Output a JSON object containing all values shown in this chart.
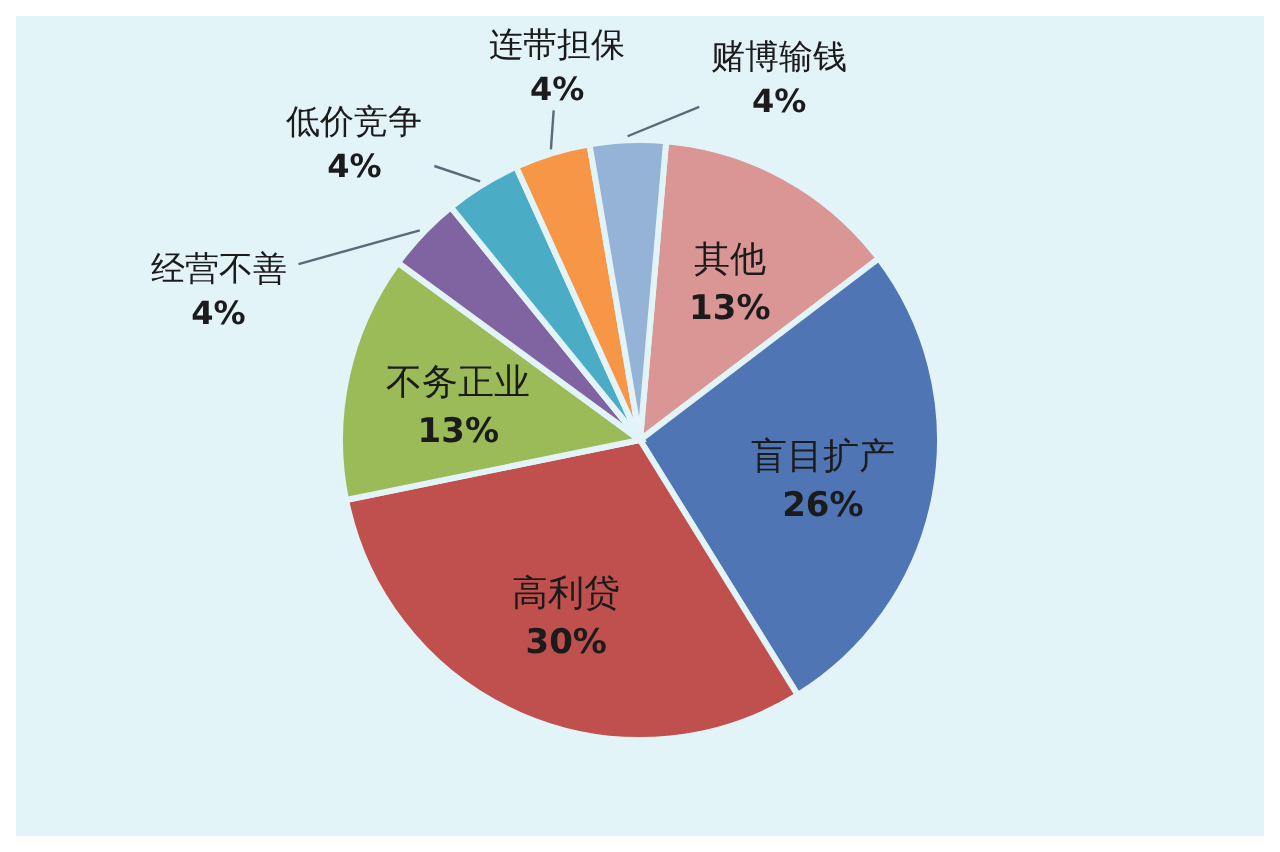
{
  "chart_data": {
    "type": "pie",
    "categories": [
      "其他",
      "盲目扩产",
      "高利贷",
      "不务正业",
      "经营不善",
      "低价竞争",
      "连带担保",
      "赌博输钱"
    ],
    "values": [
      13,
      26,
      30,
      13,
      4,
      4,
      4,
      4
    ],
    "value_labels": [
      "13%",
      "26%",
      "30%",
      "13%",
      "4%",
      "4%",
      "4%",
      "4%"
    ],
    "colors": [
      "#d99694",
      "#4f75b5",
      "#c0504d",
      "#9bbb59",
      "#8064a2",
      "#4bacc6",
      "#f79646",
      "#95b3d7"
    ]
  }
}
